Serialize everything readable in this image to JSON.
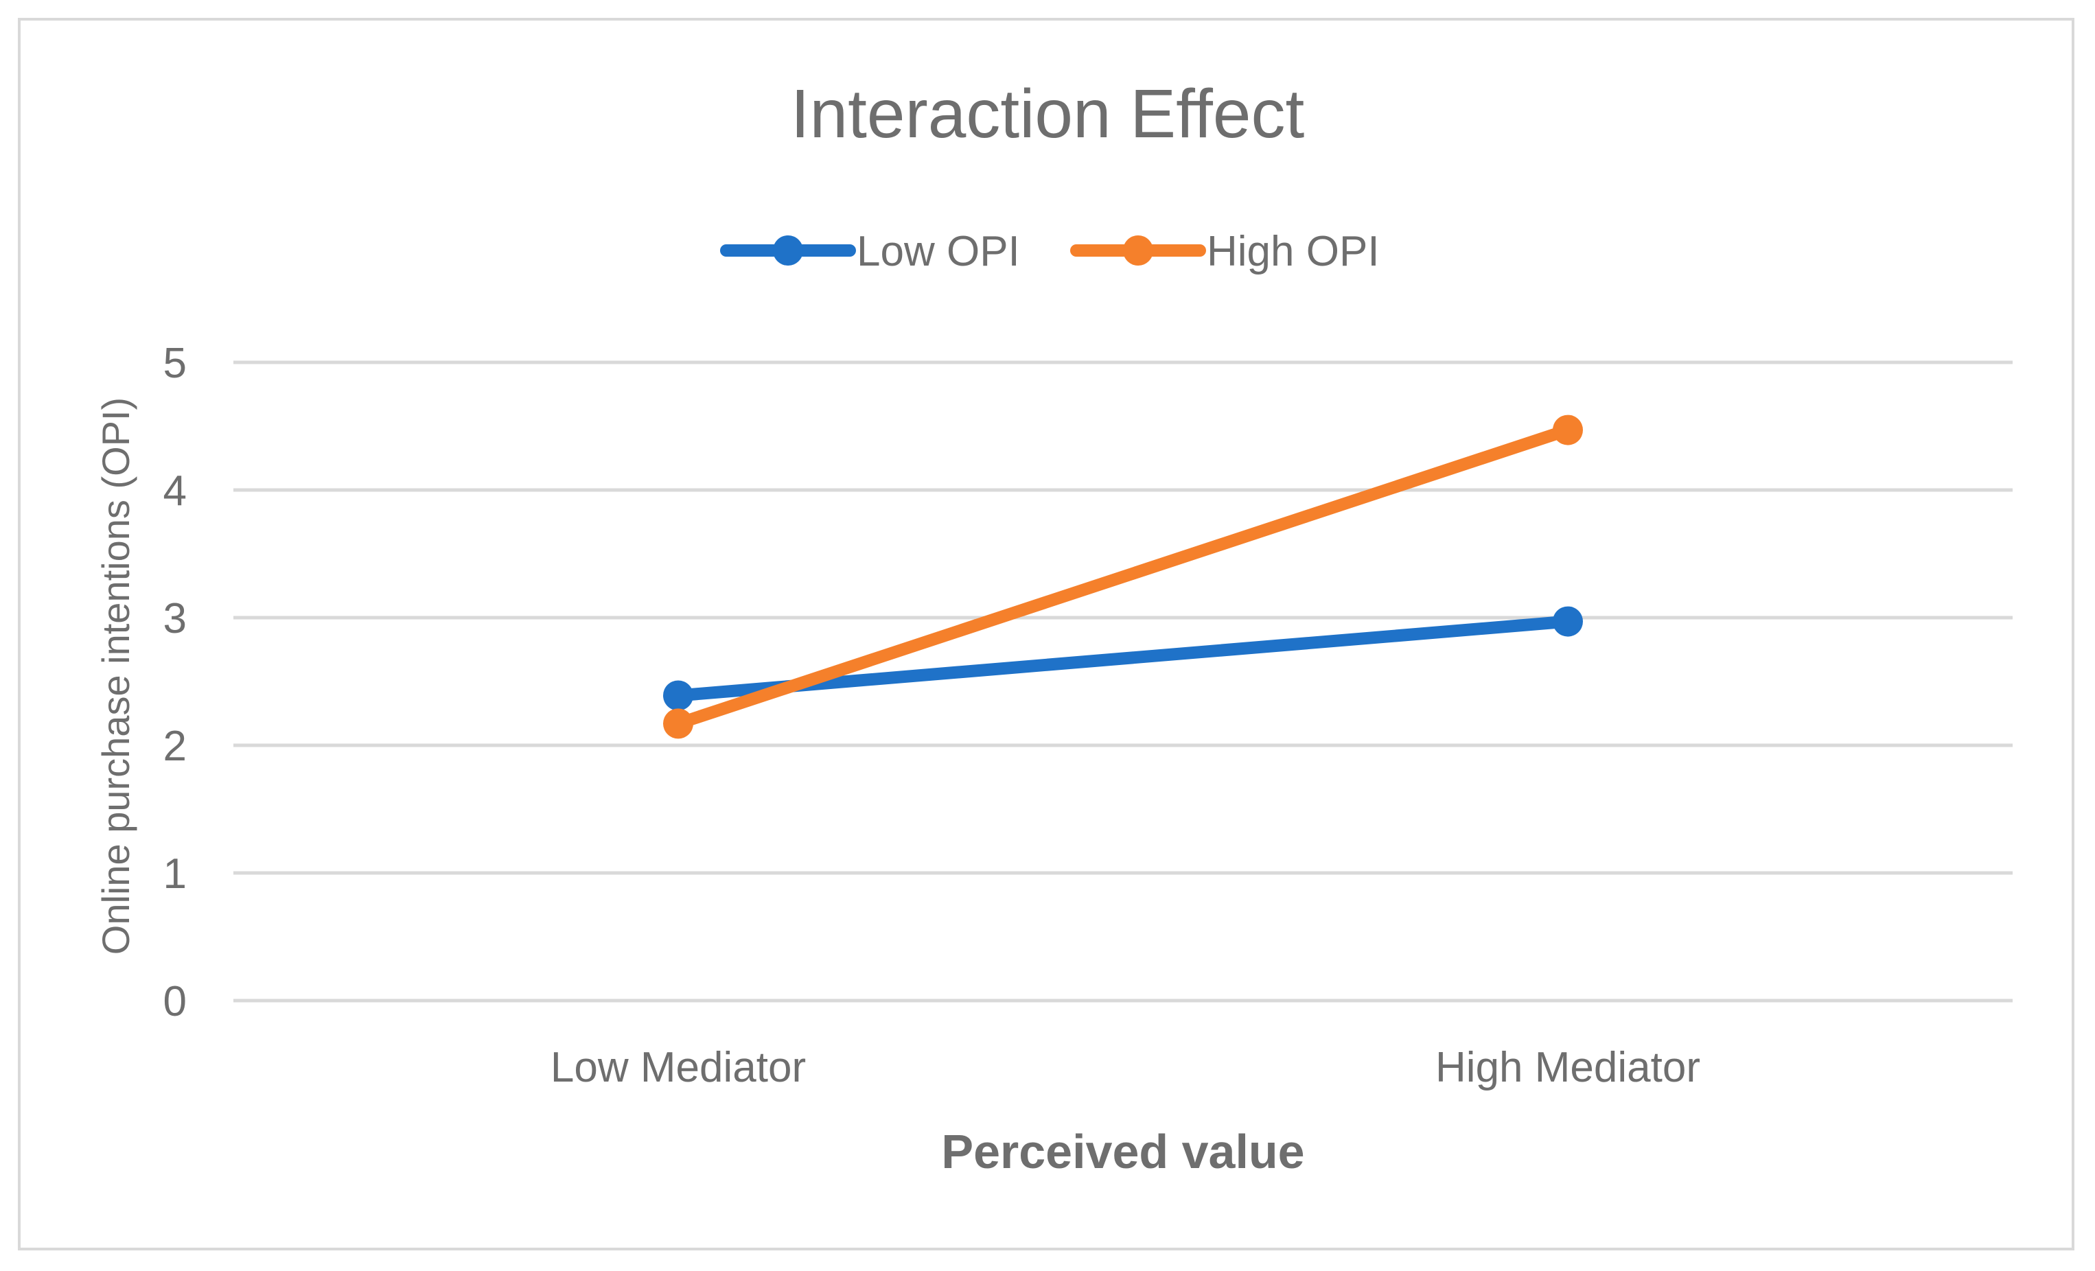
{
  "colors": {
    "low_opi": "#1f72c8",
    "high_opi": "#f5802b",
    "gridline": "#d9d9d9",
    "text": "#6e6e6e"
  },
  "chart_data": {
    "type": "line",
    "title": "Interaction Effect",
    "xlabel": "Perceived value",
    "ylabel": "Online purchase intentions (OPI)",
    "categories": [
      "Low Mediator",
      "High Mediator"
    ],
    "ylim": [
      0,
      5
    ],
    "yticks": [
      0,
      1,
      2,
      3,
      4,
      5
    ],
    "grid": true,
    "legend_position": "top-center",
    "series": [
      {
        "name": "Low OPI",
        "color": "#1f72c8",
        "values": [
          2.39,
          2.97
        ]
      },
      {
        "name": "High OPI",
        "color": "#f5802b",
        "values": [
          2.17,
          4.47
        ]
      }
    ]
  }
}
